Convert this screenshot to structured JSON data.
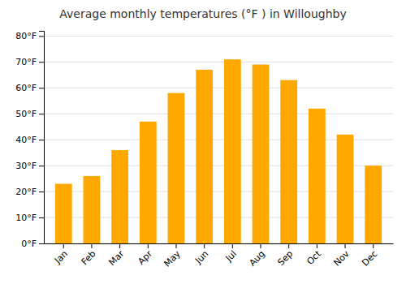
{
  "chart_data": {
    "type": "bar",
    "title": "Average monthly temperatures (°F ) in Willoughby",
    "categories": [
      "Jan",
      "Feb",
      "Mar",
      "Apr",
      "May",
      "Jun",
      "Jul",
      "Aug",
      "Sep",
      "Oct",
      "Nov",
      "Dec"
    ],
    "values": [
      23,
      26,
      36,
      47,
      58,
      67,
      71,
      69,
      63,
      52,
      42,
      30
    ],
    "color": "#FFA800",
    "ylim": [
      0,
      82
    ],
    "yticks": [
      {
        "value": 0,
        "label": "0°F"
      },
      {
        "value": 10,
        "label": "10°F"
      },
      {
        "value": 20,
        "label": "20°F"
      },
      {
        "value": 30,
        "label": "30°F"
      },
      {
        "value": 40,
        "label": "40°F"
      },
      {
        "value": 50,
        "label": "50°F"
      },
      {
        "value": 60,
        "label": "60°F"
      },
      {
        "value": 70,
        "label": "70°F"
      },
      {
        "value": 80,
        "label": "80°F"
      }
    ],
    "grid": true
  }
}
